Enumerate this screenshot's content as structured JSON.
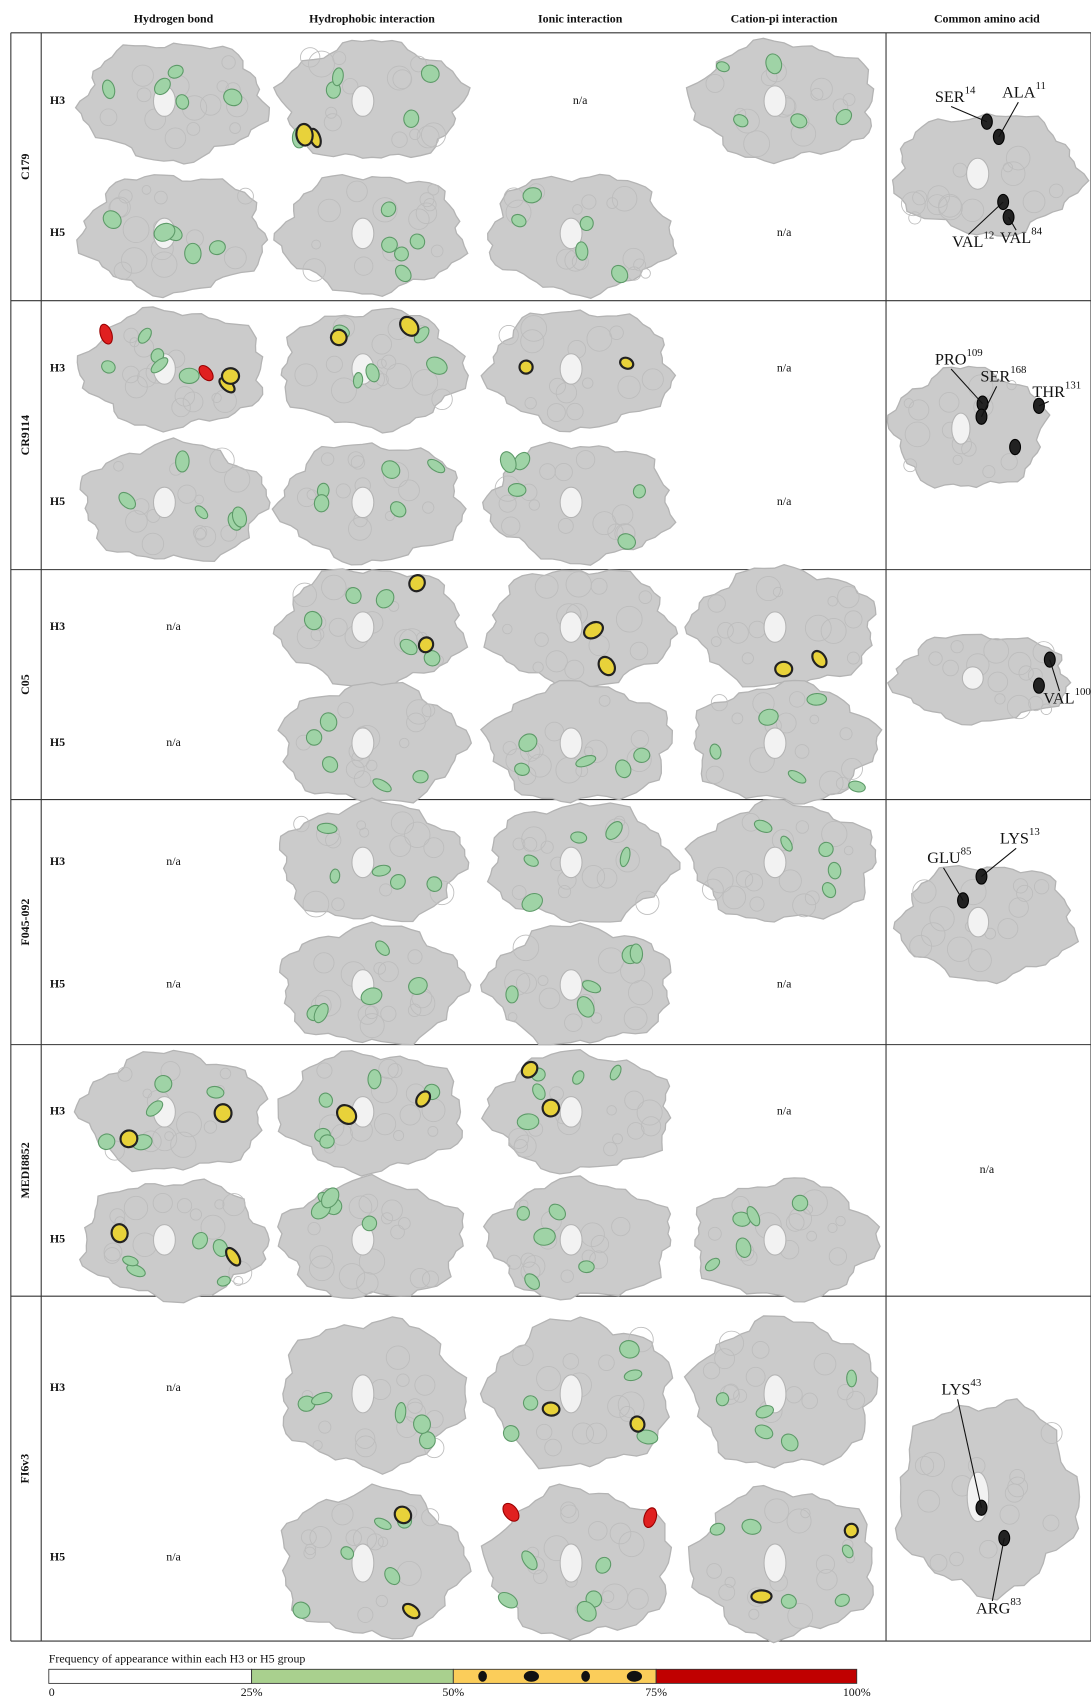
{
  "header": {
    "columns": [
      "Hydrogen bond",
      "Hydrophobic interaction",
      "Ionic interaction",
      "Cation-pi interaction",
      "Common amino acid"
    ]
  },
  "antibodies": [
    {
      "name": "C179",
      "rows": [
        {
          "label": "H3",
          "cells": [
            null,
            null,
            "n/a",
            null
          ]
        },
        {
          "label": "H5",
          "cells": [
            null,
            null,
            null,
            "n/a"
          ]
        }
      ],
      "common": [
        {
          "residue": "SER",
          "number": "14"
        },
        {
          "residue": "ALA",
          "number": "11"
        },
        {
          "residue": "VAL",
          "number": "12"
        },
        {
          "residue": "VAL",
          "number": "84"
        }
      ]
    },
    {
      "name": "CR9114",
      "rows": [
        {
          "label": "H3",
          "cells": [
            null,
            null,
            null,
            "n/a"
          ]
        },
        {
          "label": "H5",
          "cells": [
            null,
            null,
            null,
            "n/a"
          ]
        }
      ],
      "common": [
        {
          "residue": "PRO",
          "number": "109"
        },
        {
          "residue": "SER",
          "number": "168"
        },
        {
          "residue": "THR",
          "number": "131"
        }
      ]
    },
    {
      "name": "C05",
      "rows": [
        {
          "label": "H3",
          "cells": [
            "n/a",
            null,
            null,
            null
          ]
        },
        {
          "label": "H5",
          "cells": [
            "n/a",
            null,
            null,
            null
          ]
        }
      ],
      "common": [
        {
          "residue": "VAL",
          "number": "100"
        }
      ]
    },
    {
      "name": "F045-092",
      "rows": [
        {
          "label": "H3",
          "cells": [
            "n/a",
            null,
            null,
            null
          ]
        },
        {
          "label": "H5",
          "cells": [
            "n/a",
            null,
            null,
            "n/a"
          ]
        }
      ],
      "common": [
        {
          "residue": "GLU",
          "number": "85"
        },
        {
          "residue": "LYS",
          "number": "13"
        }
      ]
    },
    {
      "name": "MEDI8852",
      "rows": [
        {
          "label": "H3",
          "cells": [
            null,
            null,
            null,
            "n/a"
          ]
        },
        {
          "label": "H5",
          "cells": [
            null,
            null,
            null,
            null
          ]
        }
      ],
      "common": "n/a"
    },
    {
      "name": "FI6v3",
      "rows": [
        {
          "label": "H3",
          "cells": [
            "n/a",
            null,
            null,
            null
          ]
        },
        {
          "label": "H5",
          "cells": [
            "n/a",
            null,
            null,
            null
          ]
        }
      ],
      "common": [
        {
          "residue": "LYS",
          "number": "43"
        },
        {
          "residue": "ARG",
          "number": "83"
        }
      ]
    }
  ],
  "legend": {
    "title": "Frequency of appearance within each H3 or H5 group",
    "ticks": [
      "0",
      "25%",
      "50%",
      "75%",
      "100%"
    ]
  }
}
